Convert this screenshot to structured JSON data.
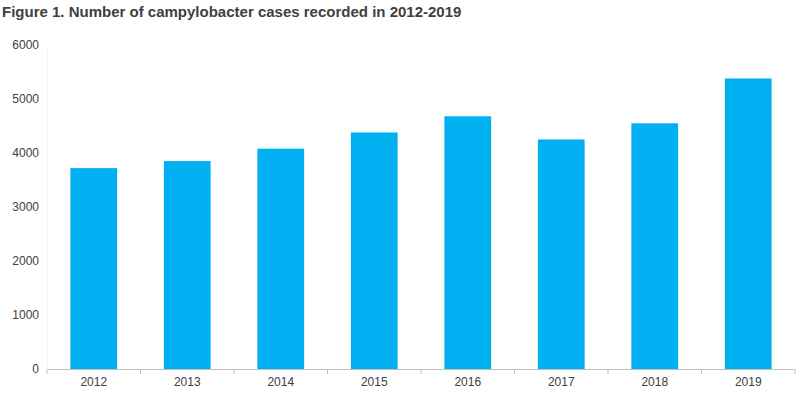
{
  "chart_data": {
    "type": "bar",
    "title": "Figure 1. Number of campylobacter cases recorded in 2012-2019",
    "categories": [
      "2012",
      "2013",
      "2014",
      "2015",
      "2016",
      "2017",
      "2018",
      "2019"
    ],
    "values": [
      3720,
      3850,
      4080,
      4380,
      4680,
      4250,
      4550,
      5380
    ],
    "color": "#00b0f0",
    "ylim": [
      0,
      6000
    ],
    "yticks": [
      0,
      1000,
      2000,
      3000,
      4000,
      5000,
      6000
    ],
    "grid": false
  }
}
